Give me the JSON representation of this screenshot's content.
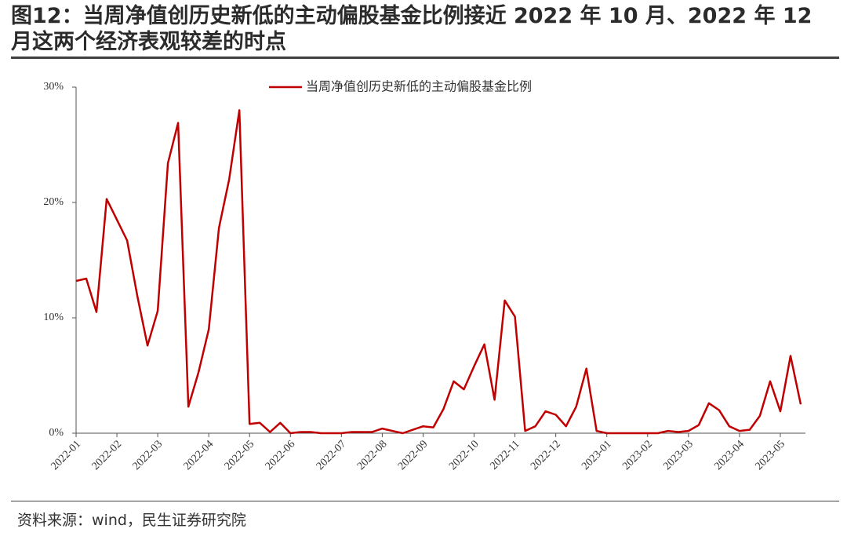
{
  "chart_data": {
    "type": "line",
    "title": "图12：当周净值创历史新低的主动偏股基金比例接近 2022 年 10 月、2022 年 12 月这两个经济表观较差的时点",
    "source": "资料来源：wind，民生证券研究院",
    "legend": "top",
    "categories": [
      "2022-01",
      null,
      null,
      null,
      "2022-02",
      null,
      null,
      null,
      "2022-03",
      null,
      null,
      null,
      null,
      "2022-04",
      null,
      null,
      null,
      "2022-05",
      null,
      null,
      null,
      "2022-06",
      null,
      null,
      null,
      null,
      "2022-07",
      null,
      null,
      null,
      "2022-08",
      null,
      null,
      null,
      "2022-09",
      null,
      null,
      null,
      null,
      "2022-10",
      null,
      null,
      null,
      "2022-11",
      null,
      null,
      null,
      "2022-12",
      null,
      null,
      null,
      null,
      "2023-01",
      null,
      null,
      null,
      "2023-02",
      null,
      null,
      null,
      "2023-03",
      null,
      null,
      null,
      null,
      "2023-04",
      null,
      null,
      null,
      "2023-05",
      null,
      null
    ],
    "series": [
      {
        "name": "当周净值创历史新低的主动偏股基金比例",
        "color": "#c00000",
        "values": [
          13.2,
          13.4,
          10.5,
          20.3,
          18.5,
          16.7,
          11.9,
          7.6,
          10.6,
          23.4,
          26.9,
          2.3,
          5.3,
          9.0,
          17.8,
          22.0,
          28.0,
          0.8,
          0.9,
          0.1,
          0.9,
          0.0,
          0.1,
          0.1,
          0.0,
          0.0,
          0.0,
          0.1,
          0.1,
          0.1,
          0.4,
          0.2,
          0.0,
          0.3,
          0.6,
          0.5,
          2.1,
          4.5,
          3.8,
          5.8,
          7.7,
          2.9,
          11.5,
          10.1,
          0.2,
          0.6,
          1.9,
          1.6,
          0.6,
          2.3,
          5.6,
          0.2,
          0.0,
          0.0,
          0.0,
          0.0,
          0.0,
          0.0,
          0.2,
          0.1,
          0.2,
          0.7,
          2.6,
          2.0,
          0.6,
          0.2,
          0.3,
          1.5,
          4.5,
          1.9,
          6.7,
          2.5
        ]
      }
    ],
    "ylim": [
      0,
      30
    ],
    "yticks": [
      {
        "value": 0,
        "label": "0%"
      },
      {
        "value": 10,
        "label": "10%"
      },
      {
        "value": 20,
        "label": "20%"
      },
      {
        "value": 30,
        "label": "30%"
      }
    ]
  }
}
